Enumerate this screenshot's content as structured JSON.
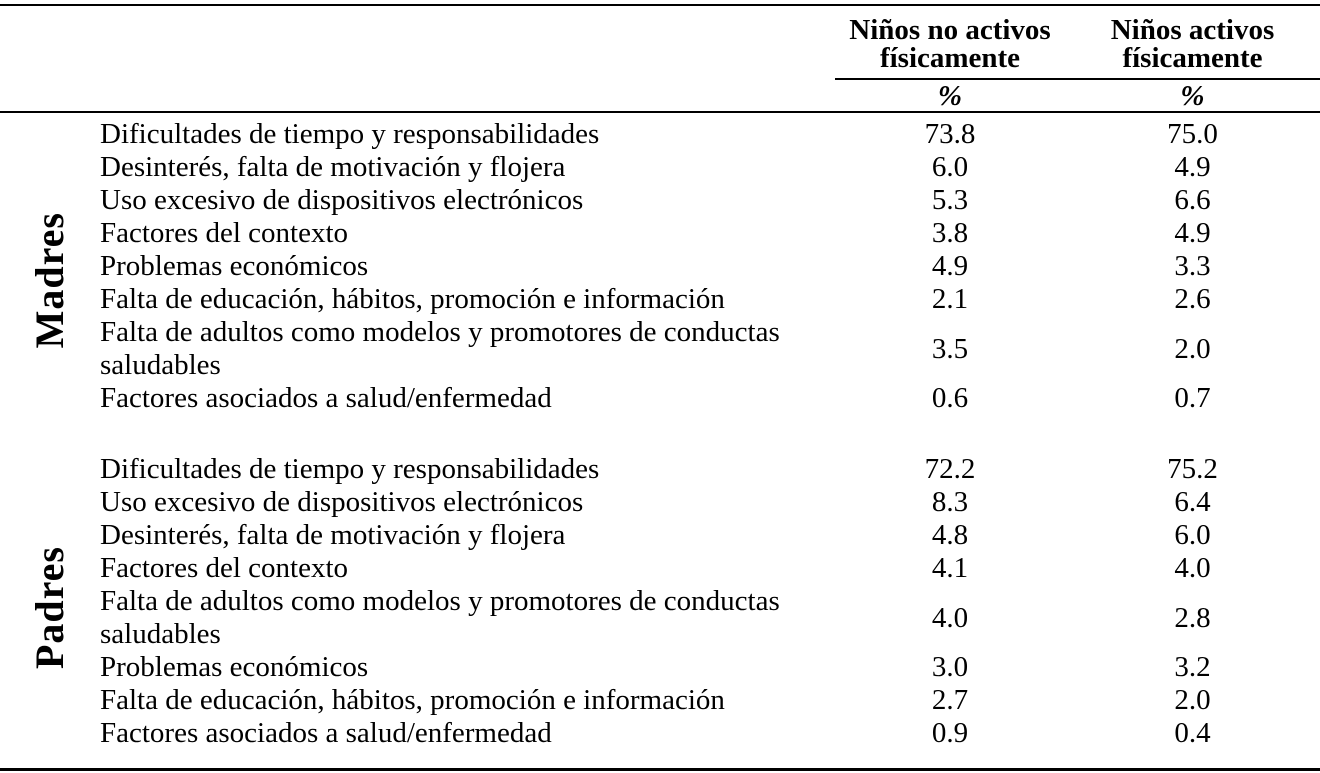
{
  "table": {
    "columns": [
      {
        "label": "Niños no activos físicamente",
        "unit": "%"
      },
      {
        "label": "Niños activos físicamente",
        "unit": "%"
      }
    ],
    "sections": [
      {
        "group": "Madres",
        "rows": [
          {
            "factor": "Dificultades de tiempo y responsabilidades",
            "values": [
              "73.8",
              "75.0"
            ]
          },
          {
            "factor": "Desinterés, falta de motivación y flojera",
            "values": [
              "6.0",
              "4.9"
            ]
          },
          {
            "factor": "Uso excesivo de dispositivos electrónicos",
            "values": [
              "5.3",
              "6.6"
            ]
          },
          {
            "factor": "Factores del contexto",
            "values": [
              "3.8",
              "4.9"
            ]
          },
          {
            "factor": "Problemas económicos",
            "values": [
              "4.9",
              "3.3"
            ]
          },
          {
            "factor": "Falta de educación, hábitos, promoción e información",
            "values": [
              "2.1",
              "2.6"
            ]
          },
          {
            "factor": "Falta de adultos como modelos y promotores de conductas saludables",
            "values": [
              "3.5",
              "2.0"
            ]
          },
          {
            "factor": "Factores asociados a salud/enfermedad",
            "values": [
              "0.6",
              "0.7"
            ]
          }
        ]
      },
      {
        "group": "Padres",
        "rows": [
          {
            "factor": "Dificultades de tiempo y responsabilidades",
            "values": [
              "72.2",
              "75.2"
            ]
          },
          {
            "factor": "Uso excesivo de dispositivos electrónicos",
            "values": [
              "8.3",
              "6.4"
            ]
          },
          {
            "factor": "Desinterés, falta de motivación y flojera",
            "values": [
              "4.8",
              "6.0"
            ]
          },
          {
            "factor": "Factores del contexto",
            "values": [
              "4.1",
              "4.0"
            ]
          },
          {
            "factor": "Falta de adultos como modelos y promotores de conductas saludables",
            "values": [
              "4.0",
              "2.8"
            ]
          },
          {
            "factor": "Problemas económicos",
            "values": [
              "3.0",
              "3.2"
            ]
          },
          {
            "factor": "Falta de educación, hábitos, promoción e información",
            "values": [
              "2.7",
              "2.0"
            ]
          },
          {
            "factor": "Factores asociados a salud/enfermedad",
            "values": [
              "0.9",
              "0.4"
            ]
          }
        ]
      }
    ],
    "colors": {
      "text": "#000000",
      "background": "#ffffff",
      "rule": "#000000"
    }
  }
}
